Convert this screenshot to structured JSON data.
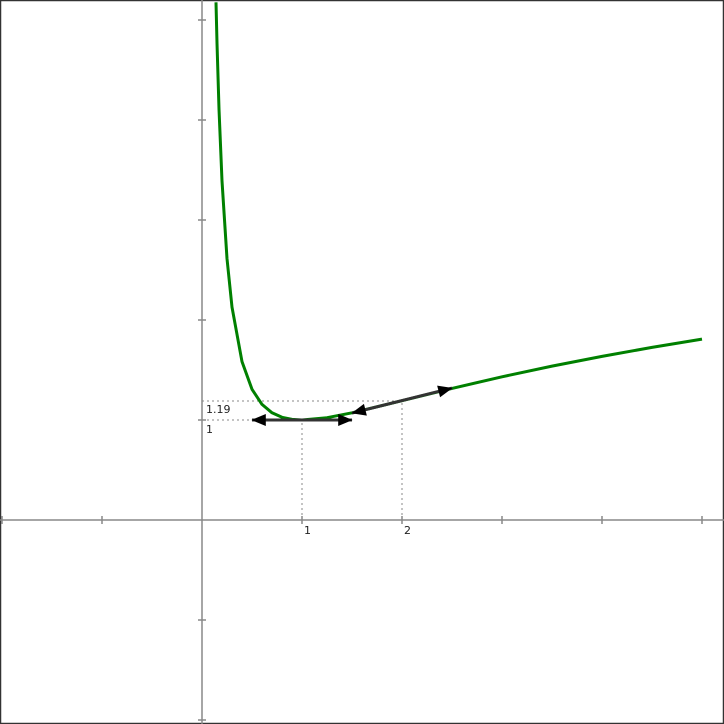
{
  "chart_data": {
    "type": "line",
    "title": "",
    "xlabel": "",
    "ylabel": "",
    "xlim": [
      -2,
      5.2
    ],
    "ylim": [
      -2,
      5
    ],
    "grid": false,
    "x_ticks": [
      -2,
      -1,
      0,
      1,
      2,
      3,
      4,
      5
    ],
    "y_ticks": [
      -2,
      -1,
      0,
      1,
      2,
      3,
      4,
      5
    ],
    "x_tick_labels": [
      {
        "x": 1,
        "label": "1"
      },
      {
        "x": 2,
        "label": "2"
      }
    ],
    "y_tick_labels": [
      {
        "y": 1,
        "label": "1"
      },
      {
        "y": 1.19,
        "label": "1.19"
      }
    ],
    "series": [
      {
        "color": "#008000",
        "points": [
          [
            0.14,
            5.177
          ],
          [
            0.15,
            4.77
          ],
          [
            0.17,
            4.11
          ],
          [
            0.2,
            3.391
          ],
          [
            0.25,
            2.614
          ],
          [
            0.3,
            2.129
          ],
          [
            0.4,
            1.584
          ],
          [
            0.5,
            1.307
          ],
          [
            0.6,
            1.156
          ],
          [
            0.7,
            1.072
          ],
          [
            0.8,
            1.027
          ],
          [
            0.9,
            1.006
          ],
          [
            1,
            1
          ],
          [
            1.25,
            1.023
          ],
          [
            1.5,
            1.072
          ],
          [
            2,
            1.193
          ],
          [
            2.5,
            1.316
          ],
          [
            3,
            1.432
          ],
          [
            3.5,
            1.539
          ],
          [
            4,
            1.636
          ],
          [
            4.5,
            1.726
          ],
          [
            5,
            1.809
          ]
        ]
      }
    ],
    "tangent_arrows": [
      {
        "from": [
          0.5,
          1
        ],
        "to": [
          1.5,
          1
        ],
        "color": "#333333"
      },
      {
        "from": [
          1.5,
          1.069
        ],
        "to": [
          2.5,
          1.319
        ],
        "color": "#333333"
      }
    ],
    "guide_lines": [
      {
        "point": [
          1,
          1
        ]
      },
      {
        "point": [
          2,
          1.19
        ]
      }
    ]
  }
}
